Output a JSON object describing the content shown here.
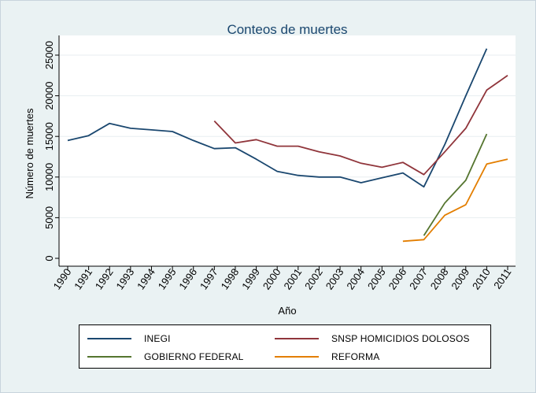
{
  "chart_data": {
    "type": "line",
    "title": "Conteos de muertes",
    "xlabel": "Año",
    "ylabel": "Número de muertes",
    "x": [
      1990,
      1991,
      1992,
      1993,
      1994,
      1995,
      1996,
      1997,
      1998,
      1999,
      2000,
      2001,
      2002,
      2003,
      2004,
      2005,
      2006,
      2007,
      2008,
      2009,
      2010,
      2011
    ],
    "xlim": [
      1990,
      2011
    ],
    "ylim": [
      0,
      25000
    ],
    "yticks": [
      0,
      5000,
      10000,
      15000,
      20000,
      25000
    ],
    "grid": true,
    "legend_position": "bottom",
    "series": [
      {
        "name": "INEGI",
        "color": "#1a476f",
        "points": [
          [
            1990,
            14500
          ],
          [
            1991,
            15100
          ],
          [
            1992,
            16600
          ],
          [
            1993,
            16000
          ],
          [
            1994,
            15800
          ],
          [
            1995,
            15600
          ],
          [
            1996,
            14500
          ],
          [
            1997,
            13500
          ],
          [
            1998,
            13600
          ],
          [
            1999,
            12200
          ],
          [
            2000,
            10700
          ],
          [
            2001,
            10200
          ],
          [
            2002,
            10000
          ],
          [
            2003,
            10000
          ],
          [
            2004,
            9300
          ],
          [
            2005,
            9900
          ],
          [
            2006,
            10500
          ],
          [
            2007,
            8800
          ],
          [
            2008,
            14000
          ],
          [
            2009,
            20000
          ],
          [
            2010,
            25800
          ]
        ]
      },
      {
        "name": "SNSP HOMICIDIOS DOLOSOS",
        "color": "#90353b",
        "points": [
          [
            1997,
            16900
          ],
          [
            1998,
            14200
          ],
          [
            1999,
            14600
          ],
          [
            2000,
            13800
          ],
          [
            2001,
            13800
          ],
          [
            2002,
            13100
          ],
          [
            2003,
            12600
          ],
          [
            2004,
            11700
          ],
          [
            2005,
            11200
          ],
          [
            2006,
            11800
          ],
          [
            2007,
            10300
          ],
          [
            2008,
            13100
          ],
          [
            2009,
            16000
          ],
          [
            2010,
            20700
          ],
          [
            2011,
            22500
          ]
        ]
      },
      {
        "name": "GOBIERNO FEDERAL",
        "color": "#55752f",
        "points": [
          [
            2007,
            2800
          ],
          [
            2008,
            6800
          ],
          [
            2009,
            9600
          ],
          [
            2010,
            15300
          ]
        ]
      },
      {
        "name": "REFORMA",
        "color": "#e37e00",
        "points": [
          [
            2006,
            2100
          ],
          [
            2007,
            2300
          ],
          [
            2008,
            5300
          ],
          [
            2009,
            6600
          ],
          [
            2010,
            11600
          ],
          [
            2011,
            12200
          ]
        ]
      }
    ]
  }
}
